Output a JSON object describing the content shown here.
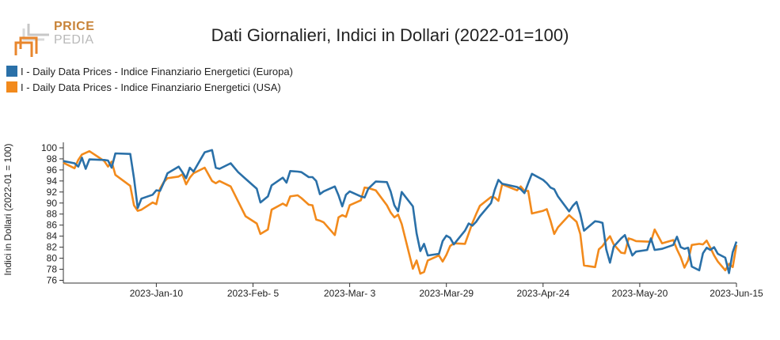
{
  "logo": {
    "line1": "PRICE",
    "line2": "PEDIA"
  },
  "chart_data": {
    "type": "line",
    "title": "Dati Giornalieri, Indici in Dollari (2022-01=100)",
    "xlabel": "",
    "ylabel": "Indici in Dollari (2022-01 = 100)",
    "x_range": [
      "2022-12-16",
      "2023-06-15"
    ],
    "ylim": [
      75.5,
      101
    ],
    "yticks": [
      76,
      78,
      80,
      82,
      84,
      86,
      88,
      90,
      92,
      94,
      96,
      98,
      100
    ],
    "xticks": [
      {
        "date": "2023-01-10",
        "label": "2023-Jan-10"
      },
      {
        "date": "2023-02-05",
        "label": "2023-Feb- 5"
      },
      {
        "date": "2023-03-03",
        "label": "2023-Mar- 3"
      },
      {
        "date": "2023-03-29",
        "label": "2023-Mar-29"
      },
      {
        "date": "2023-04-24",
        "label": "2023-Apr-24"
      },
      {
        "date": "2023-05-20",
        "label": "2023-May-20"
      },
      {
        "date": "2023-06-15",
        "label": "2023-Jun-15"
      }
    ],
    "grid": false,
    "legend_position": "top-left",
    "series": [
      {
        "name": "I - Daily Data Prices - Indice Finanziario Energetici (Europa)",
        "color": "#2a70a8",
        "points": [
          [
            "2022-12-16",
            97.6
          ],
          [
            "2022-12-19",
            97.2
          ],
          [
            "2022-12-20",
            96.6
          ],
          [
            "2022-12-21",
            98.2
          ],
          [
            "2022-12-22",
            96.2
          ],
          [
            "2022-12-23",
            97.9
          ],
          [
            "2022-12-27",
            97.8
          ],
          [
            "2022-12-28",
            97.7
          ],
          [
            "2022-12-29",
            96.4
          ],
          [
            "2022-12-30",
            99.0
          ],
          [
            "2023-01-03",
            98.9
          ],
          [
            "2023-01-04",
            94.5
          ],
          [
            "2023-01-05",
            89.1
          ],
          [
            "2023-01-06",
            90.8
          ],
          [
            "2023-01-09",
            91.5
          ],
          [
            "2023-01-10",
            92.3
          ],
          [
            "2023-01-11",
            92.2
          ],
          [
            "2023-01-12",
            93.7
          ],
          [
            "2023-01-13",
            95.4
          ],
          [
            "2023-01-16",
            96.6
          ],
          [
            "2023-01-17",
            95.6
          ],
          [
            "2023-01-18",
            94.5
          ],
          [
            "2023-01-19",
            96.4
          ],
          [
            "2023-01-20",
            95.7
          ],
          [
            "2023-01-23",
            99.2
          ],
          [
            "2023-01-25",
            99.6
          ],
          [
            "2023-01-26",
            96.4
          ],
          [
            "2023-01-27",
            96.2
          ],
          [
            "2023-01-30",
            97.2
          ],
          [
            "2023-02-01",
            95.6
          ],
          [
            "2023-02-03",
            94.4
          ],
          [
            "2023-02-06",
            92.6
          ],
          [
            "2023-02-07",
            90.1
          ],
          [
            "2023-02-09",
            91.2
          ],
          [
            "2023-02-10",
            93.2
          ],
          [
            "2023-02-13",
            94.6
          ],
          [
            "2023-02-14",
            93.7
          ],
          [
            "2023-02-15",
            95.8
          ],
          [
            "2023-02-17",
            95.7
          ],
          [
            "2023-02-18",
            95.6
          ],
          [
            "2023-02-20",
            94.7
          ],
          [
            "2023-02-21",
            94.7
          ],
          [
            "2023-02-22",
            94.0
          ],
          [
            "2023-02-23",
            91.6
          ],
          [
            "2023-02-24",
            92.1
          ],
          [
            "2023-02-27",
            93.0
          ],
          [
            "2023-02-28",
            91.4
          ],
          [
            "2023-03-01",
            89.4
          ],
          [
            "2023-03-02",
            91.5
          ],
          [
            "2023-03-03",
            92.1
          ],
          [
            "2023-03-06",
            91.2
          ],
          [
            "2023-03-07",
            91.0
          ],
          [
            "2023-03-08",
            92.6
          ],
          [
            "2023-03-10",
            93.9
          ],
          [
            "2023-03-13",
            93.8
          ],
          [
            "2023-03-14",
            92.1
          ],
          [
            "2023-03-15",
            89.6
          ],
          [
            "2023-03-16",
            88.5
          ],
          [
            "2023-03-17",
            92.0
          ],
          [
            "2023-03-20",
            89.4
          ],
          [
            "2023-03-21",
            84.5
          ],
          [
            "2023-03-22",
            81.3
          ],
          [
            "2023-03-23",
            82.6
          ],
          [
            "2023-03-24",
            80.5
          ],
          [
            "2023-03-27",
            80.8
          ],
          [
            "2023-03-28",
            83.1
          ],
          [
            "2023-03-29",
            84.1
          ],
          [
            "2023-03-30",
            83.7
          ],
          [
            "2023-03-31",
            82.5
          ],
          [
            "2023-04-03",
            85.0
          ],
          [
            "2023-04-04",
            86.3
          ],
          [
            "2023-04-05",
            85.9
          ],
          [
            "2023-04-06",
            86.6
          ],
          [
            "2023-04-07",
            87.6
          ],
          [
            "2023-04-10",
            90.0
          ],
          [
            "2023-04-11",
            92.4
          ],
          [
            "2023-04-12",
            94.2
          ],
          [
            "2023-04-13",
            93.5
          ],
          [
            "2023-04-17",
            92.9
          ],
          [
            "2023-04-18",
            92.5
          ],
          [
            "2023-04-19",
            91.8
          ],
          [
            "2023-04-20",
            93.6
          ],
          [
            "2023-04-21",
            95.3
          ],
          [
            "2023-04-24",
            94.2
          ],
          [
            "2023-04-25",
            93.6
          ],
          [
            "2023-04-26",
            92.8
          ],
          [
            "2023-04-27",
            92.5
          ],
          [
            "2023-04-28",
            91.2
          ],
          [
            "2023-05-01",
            88.5
          ],
          [
            "2023-05-02",
            89.5
          ],
          [
            "2023-05-03",
            90.2
          ],
          [
            "2023-05-04",
            88.0
          ],
          [
            "2023-05-05",
            85.0
          ],
          [
            "2023-05-08",
            86.7
          ],
          [
            "2023-05-09",
            86.6
          ],
          [
            "2023-05-10",
            86.4
          ],
          [
            "2023-05-11",
            81.6
          ],
          [
            "2023-05-12",
            79.2
          ],
          [
            "2023-05-13",
            82.1
          ],
          [
            "2023-05-15",
            83.6
          ],
          [
            "2023-05-16",
            84.2
          ],
          [
            "2023-05-17",
            82.3
          ],
          [
            "2023-05-18",
            80.5
          ],
          [
            "2023-05-19",
            81.2
          ],
          [
            "2023-05-22",
            81.5
          ],
          [
            "2023-05-23",
            83.6
          ],
          [
            "2023-05-24",
            81.5
          ],
          [
            "2023-05-26",
            81.7
          ],
          [
            "2023-05-29",
            82.4
          ],
          [
            "2023-05-30",
            83.9
          ],
          [
            "2023-05-31",
            82.0
          ],
          [
            "2023-06-01",
            81.7
          ],
          [
            "2023-06-02",
            81.9
          ],
          [
            "2023-06-03",
            78.5
          ],
          [
            "2023-06-05",
            77.8
          ],
          [
            "2023-06-06",
            80.9
          ],
          [
            "2023-06-07",
            81.9
          ],
          [
            "2023-06-08",
            81.5
          ],
          [
            "2023-06-09",
            82.0
          ],
          [
            "2023-06-10",
            80.8
          ],
          [
            "2023-06-12",
            80.1
          ],
          [
            "2023-06-13",
            77.3
          ],
          [
            "2023-06-14",
            81.1
          ],
          [
            "2023-06-15",
            83.0
          ]
        ]
      },
      {
        "name": "I - Daily Data Prices - Indice Finanziario Energetici (USA)",
        "color": "#f28a1c",
        "points": [
          [
            "2022-12-16",
            97.3
          ],
          [
            "2022-12-19",
            96.3
          ],
          [
            "2022-12-20",
            97.8
          ],
          [
            "2022-12-21",
            98.8
          ],
          [
            "2022-12-22",
            99.1
          ],
          [
            "2022-12-23",
            99.4
          ],
          [
            "2022-12-27",
            97.6
          ],
          [
            "2022-12-28",
            96.6
          ],
          [
            "2022-12-29",
            97.5
          ],
          [
            "2022-12-30",
            95.1
          ],
          [
            "2023-01-03",
            93.1
          ],
          [
            "2023-01-04",
            89.6
          ],
          [
            "2023-01-05",
            88.6
          ],
          [
            "2023-01-06",
            88.8
          ],
          [
            "2023-01-09",
            90.1
          ],
          [
            "2023-01-10",
            89.8
          ],
          [
            "2023-01-11",
            92.6
          ],
          [
            "2023-01-12",
            93.8
          ],
          [
            "2023-01-13",
            94.5
          ],
          [
            "2023-01-16",
            94.8
          ],
          [
            "2023-01-17",
            95.2
          ],
          [
            "2023-01-18",
            93.4
          ],
          [
            "2023-01-19",
            94.6
          ],
          [
            "2023-01-20",
            95.4
          ],
          [
            "2023-01-23",
            96.4
          ],
          [
            "2023-01-25",
            94.0
          ],
          [
            "2023-01-26",
            93.6
          ],
          [
            "2023-01-27",
            94.0
          ],
          [
            "2023-01-30",
            93.0
          ],
          [
            "2023-02-01",
            90.3
          ],
          [
            "2023-02-03",
            87.6
          ],
          [
            "2023-02-06",
            86.3
          ],
          [
            "2023-02-07",
            84.4
          ],
          [
            "2023-02-09",
            85.2
          ],
          [
            "2023-02-10",
            88.8
          ],
          [
            "2023-02-13",
            89.9
          ],
          [
            "2023-02-14",
            89.5
          ],
          [
            "2023-02-15",
            91.2
          ],
          [
            "2023-02-17",
            91.4
          ],
          [
            "2023-02-18",
            90.9
          ],
          [
            "2023-02-20",
            89.7
          ],
          [
            "2023-02-21",
            89.6
          ],
          [
            "2023-02-22",
            87.0
          ],
          [
            "2023-02-23",
            86.8
          ],
          [
            "2023-02-24",
            86.5
          ],
          [
            "2023-02-27",
            84.2
          ],
          [
            "2023-02-28",
            87.4
          ],
          [
            "2023-03-01",
            87.8
          ],
          [
            "2023-03-02",
            87.5
          ],
          [
            "2023-03-03",
            89.6
          ],
          [
            "2023-03-06",
            90.5
          ],
          [
            "2023-03-07",
            92.8
          ],
          [
            "2023-03-08",
            92.7
          ],
          [
            "2023-03-10",
            92.3
          ],
          [
            "2023-03-13",
            89.6
          ],
          [
            "2023-03-14",
            88.3
          ],
          [
            "2023-03-15",
            87.4
          ],
          [
            "2023-03-16",
            87.9
          ],
          [
            "2023-03-17",
            86.2
          ],
          [
            "2023-03-20",
            78.1
          ],
          [
            "2023-03-21",
            79.6
          ],
          [
            "2023-03-22",
            77.2
          ],
          [
            "2023-03-23",
            77.5
          ],
          [
            "2023-03-24",
            79.6
          ],
          [
            "2023-03-27",
            80.5
          ],
          [
            "2023-03-28",
            79.4
          ],
          [
            "2023-03-29",
            80.6
          ],
          [
            "2023-03-30",
            82.2
          ],
          [
            "2023-03-31",
            82.7
          ],
          [
            "2023-04-03",
            82.6
          ],
          [
            "2023-04-04",
            84.5
          ],
          [
            "2023-04-05",
            86.4
          ],
          [
            "2023-04-06",
            88.0
          ],
          [
            "2023-04-07",
            89.5
          ],
          [
            "2023-04-10",
            91.1
          ],
          [
            "2023-04-11",
            91.0
          ],
          [
            "2023-04-12",
            90.4
          ],
          [
            "2023-04-13",
            93.4
          ],
          [
            "2023-04-17",
            92.3
          ],
          [
            "2023-04-18",
            93.0
          ],
          [
            "2023-04-19",
            92.2
          ],
          [
            "2023-04-20",
            92.2
          ],
          [
            "2023-04-21",
            88.1
          ],
          [
            "2023-04-24",
            88.6
          ],
          [
            "2023-04-25",
            88.9
          ],
          [
            "2023-04-26",
            86.8
          ],
          [
            "2023-04-27",
            84.4
          ],
          [
            "2023-04-28",
            85.6
          ],
          [
            "2023-05-01",
            87.8
          ],
          [
            "2023-05-02",
            87.2
          ],
          [
            "2023-05-03",
            86.6
          ],
          [
            "2023-05-04",
            84.4
          ],
          [
            "2023-05-05",
            78.7
          ],
          [
            "2023-05-08",
            78.4
          ],
          [
            "2023-05-09",
            81.6
          ],
          [
            "2023-05-10",
            82.2
          ],
          [
            "2023-05-11",
            83.2
          ],
          [
            "2023-05-12",
            84.0
          ],
          [
            "2023-05-13",
            82.5
          ],
          [
            "2023-05-15",
            81.0
          ],
          [
            "2023-05-16",
            80.9
          ],
          [
            "2023-05-17",
            83.6
          ],
          [
            "2023-05-18",
            83.4
          ],
          [
            "2023-05-19",
            83.1
          ],
          [
            "2023-05-22",
            83.0
          ],
          [
            "2023-05-23",
            83.0
          ],
          [
            "2023-05-24",
            85.2
          ],
          [
            "2023-05-26",
            82.7
          ],
          [
            "2023-05-29",
            83.3
          ],
          [
            "2023-05-30",
            81.6
          ],
          [
            "2023-05-31",
            80.2
          ],
          [
            "2023-06-01",
            78.3
          ],
          [
            "2023-06-02",
            79.6
          ],
          [
            "2023-06-03",
            82.4
          ],
          [
            "2023-06-05",
            82.6
          ],
          [
            "2023-06-06",
            82.5
          ],
          [
            "2023-06-07",
            83.2
          ],
          [
            "2023-06-08",
            81.9
          ],
          [
            "2023-06-09",
            80.5
          ],
          [
            "2023-06-10",
            79.4
          ],
          [
            "2023-06-12",
            77.8
          ],
          [
            "2023-06-13",
            79.0
          ],
          [
            "2023-06-14",
            78.4
          ],
          [
            "2023-06-15",
            82.4
          ]
        ]
      }
    ]
  }
}
